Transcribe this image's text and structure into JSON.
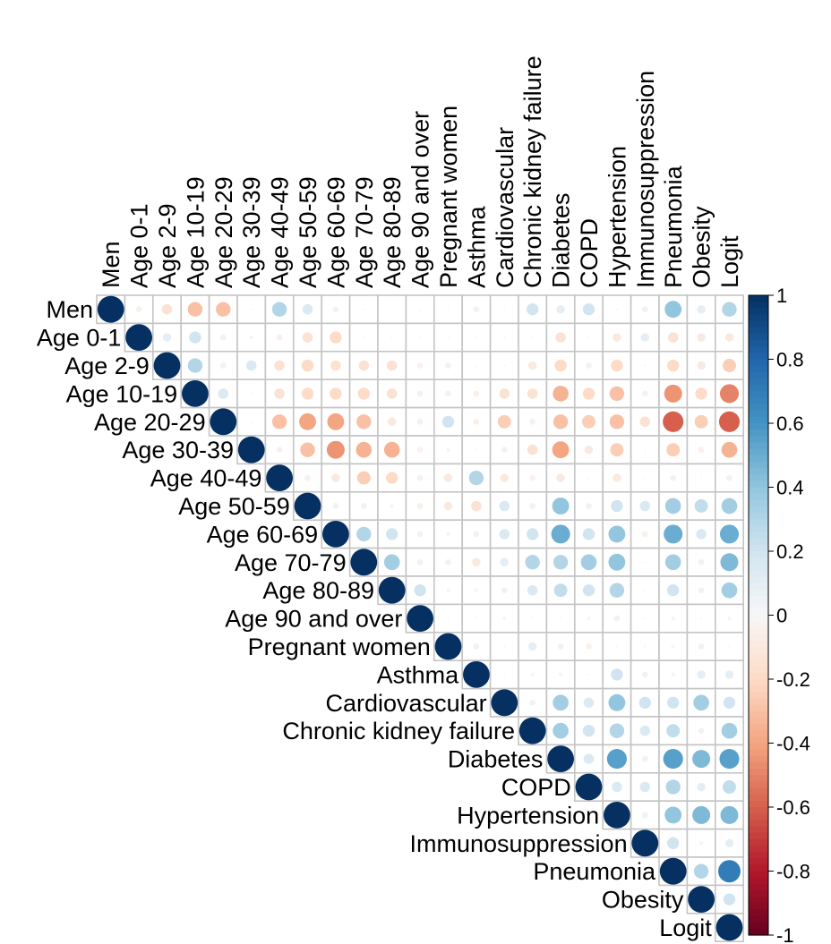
{
  "chart_data": {
    "type": "heatmap",
    "subtype": "upper-triangular correlation plot (circles)",
    "variables": [
      "Men",
      "Age 0-1",
      "Age 2-9",
      "Age 10-19",
      "Age 20-29",
      "Age 30-39",
      "Age 40-49",
      "Age 50-59",
      "Age 60-69",
      "Age 70-79",
      "Age 80-89",
      "Age 90 and over",
      "Pregnant women",
      "Asthma",
      "Cardiovascular",
      "Chronic kidney failure",
      "Diabetes",
      "COPD",
      "Hypertension",
      "Immunosuppression",
      "Pneumonia",
      "Obesity",
      "Logit"
    ],
    "matrix_upper": [
      [
        1,
        -0.05,
        -0.15,
        -0.3,
        -0.3,
        0,
        0.3,
        0.15,
        0.05,
        0,
        0,
        0,
        0,
        0.05,
        0,
        0.2,
        0.1,
        0.2,
        0,
        0.05,
        0.4,
        0.1,
        0.3
      ],
      [
        1,
        0.1,
        0.2,
        0.05,
        0.02,
        -0.05,
        -0.15,
        -0.2,
        0,
        0,
        0,
        0,
        0,
        0,
        0,
        -0.15,
        0,
        -0.1,
        0.1,
        -0.15,
        -0.1,
        -0.1
      ],
      [
        1,
        0.3,
        0.05,
        0.15,
        -0.15,
        -0.2,
        -0.15,
        -0.15,
        -0.15,
        -0.05,
        0.05,
        0,
        0,
        -0.1,
        -0.2,
        0.05,
        -0.2,
        0,
        -0.2,
        -0.1,
        -0.25
      ],
      [
        1,
        0.15,
        0,
        -0.15,
        -0.2,
        -0.2,
        -0.2,
        -0.15,
        -0.05,
        -0.05,
        -0.05,
        -0.15,
        -0.15,
        -0.35,
        -0.2,
        -0.3,
        -0.05,
        -0.45,
        -0.2,
        -0.5
      ],
      [
        1,
        0,
        -0.3,
        -0.4,
        -0.4,
        -0.3,
        -0.1,
        -0.05,
        0.2,
        -0.05,
        -0.25,
        -0.05,
        -0.3,
        -0.25,
        -0.3,
        -0.15,
        -0.6,
        -0.25,
        -0.6
      ],
      [
        1,
        -0.05,
        -0.3,
        -0.45,
        -0.35,
        -0.35,
        -0.05,
        -0.02,
        0,
        0.05,
        -0.15,
        -0.4,
        -0.1,
        -0.25,
        0,
        -0.25,
        -0.05,
        -0.35
      ],
      [
        1,
        -0.05,
        -0.1,
        -0.25,
        -0.2,
        -0.05,
        -0.1,
        0.3,
        -0.1,
        -0.05,
        -0.1,
        0,
        -0.1,
        0,
        0.05,
        0,
        0.05
      ],
      [
        1,
        0.05,
        0.05,
        0.02,
        -0.05,
        -0.1,
        -0.15,
        0.15,
        0.05,
        0.4,
        0.05,
        0.2,
        0.15,
        0.35,
        0.25,
        0.35
      ],
      [
        1,
        0.3,
        0.2,
        0.05,
        0.02,
        0.05,
        0.15,
        0.2,
        0.5,
        0.2,
        0.4,
        -0.05,
        0.5,
        0.15,
        0.5
      ],
      [
        1,
        0.35,
        0.05,
        -0.05,
        -0.1,
        0.1,
        0.3,
        0.3,
        0.35,
        0.4,
        0,
        0.35,
        0.05,
        0.45
      ],
      [
        1,
        0.2,
        0.02,
        0.02,
        0.05,
        0.15,
        0.25,
        0.2,
        0.3,
        0,
        0.2,
        0.05,
        0.35
      ],
      [
        1,
        0,
        0,
        0.02,
        0,
        0,
        0.02,
        0.05,
        0,
        0.02,
        0,
        0.02
      ],
      [
        1,
        0.05,
        0,
        0.1,
        0.05,
        -0.05,
        0,
        0,
        0.02,
        0.05,
        0
      ],
      [
        1,
        0,
        0.02,
        0.02,
        0,
        0.2,
        0.05,
        0.02,
        0.1,
        0.1
      ],
      [
        1,
        0.05,
        0.35,
        0.15,
        0.4,
        0.2,
        0.2,
        0.35,
        0.2
      ],
      [
        1,
        0.35,
        0.2,
        0.3,
        0.15,
        0.25,
        0.05,
        0.35
      ],
      [
        1,
        0.15,
        0.55,
        0.05,
        0.55,
        0.45,
        0.55
      ],
      [
        1,
        0.15,
        0.15,
        0.3,
        0.1,
        0.25
      ],
      [
        1,
        0.05,
        0.4,
        0.45,
        0.45
      ],
      [
        1,
        0.2,
        0.02,
        0.1
      ],
      [
        1,
        0.3,
        0.7
      ],
      [
        1,
        0.2
      ],
      [
        1
      ]
    ],
    "colorbar": {
      "ticks": [
        "1",
        "0.8",
        "0.6",
        "0.4",
        "0.2",
        "0",
        "-0.2",
        "-0.4",
        "-0.6",
        "-0.8",
        "-1"
      ],
      "range": [
        -1,
        1
      ]
    },
    "grid": true,
    "legend": "colorbar right"
  }
}
